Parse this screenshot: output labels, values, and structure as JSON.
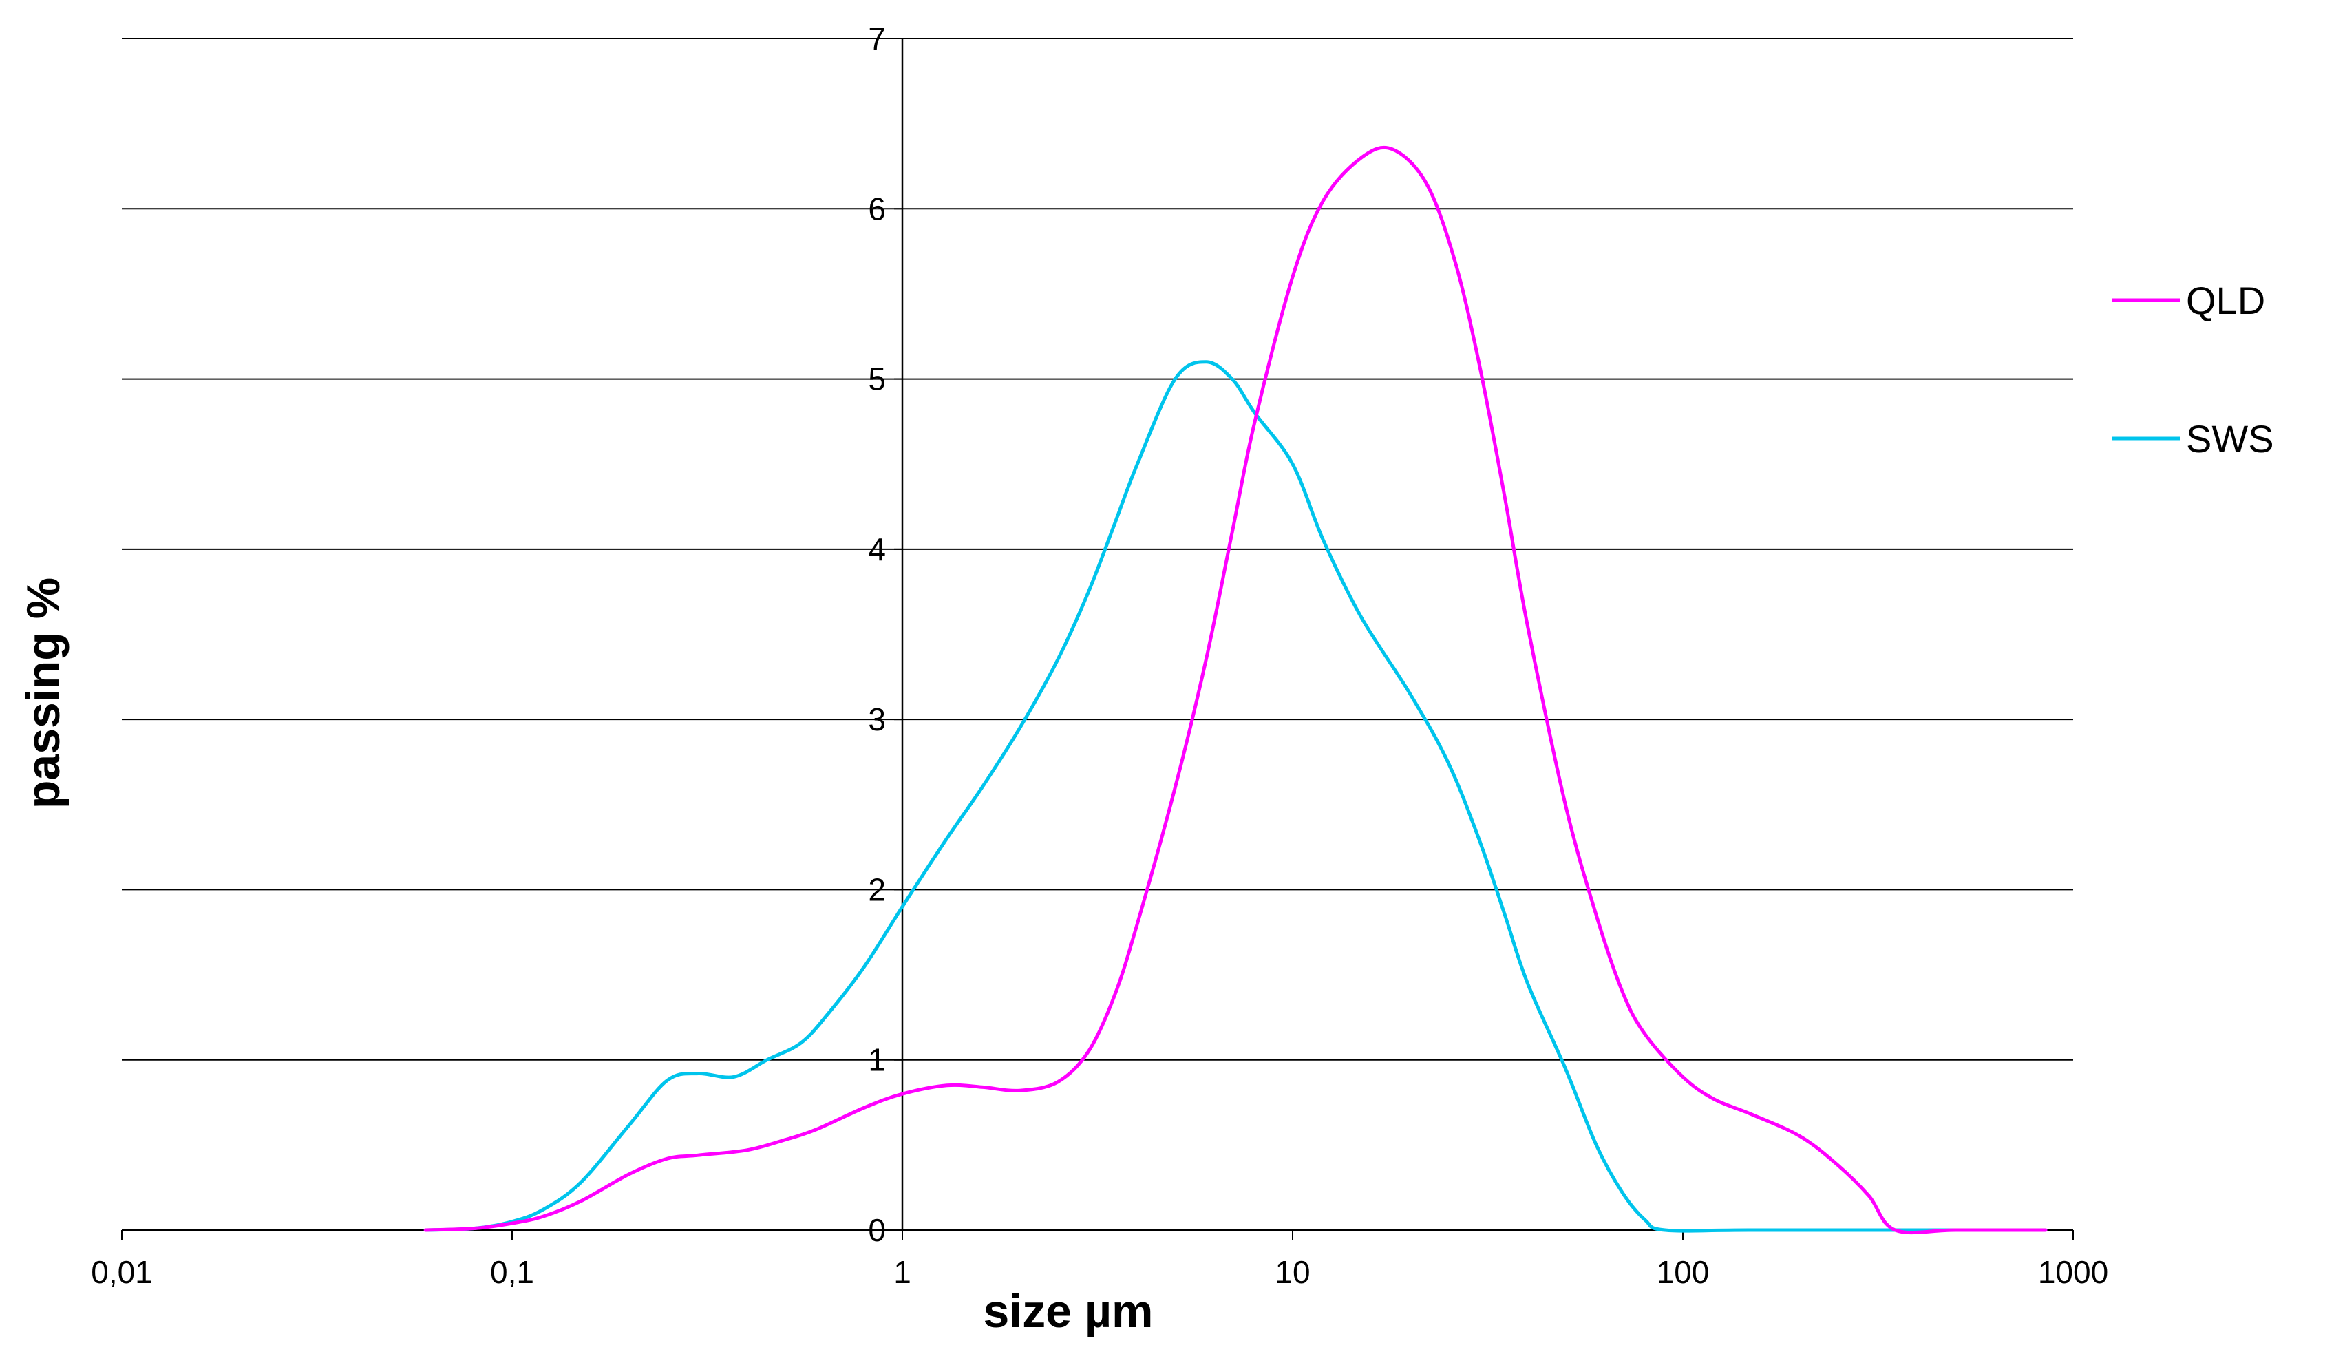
{
  "chart_data": {
    "type": "line",
    "title": "",
    "xlabel": "size µm",
    "ylabel": "passing %",
    "x_scale": "log",
    "xlim": [
      0.01,
      1000
    ],
    "ylim": [
      0,
      7
    ],
    "grid": {
      "horizontal": true,
      "vertical": false
    },
    "legend_position": "right",
    "x_ticks": [
      {
        "value": 0.01,
        "label": "0,01"
      },
      {
        "value": 0.1,
        "label": "0,1"
      },
      {
        "value": 1,
        "label": "1"
      },
      {
        "value": 10,
        "label": "10"
      },
      {
        "value": 100,
        "label": "100"
      },
      {
        "value": 1000,
        "label": "1000"
      }
    ],
    "y_ticks": [
      {
        "value": 0,
        "label": "0"
      },
      {
        "value": 1,
        "label": "1"
      },
      {
        "value": 2,
        "label": "2"
      },
      {
        "value": 3,
        "label": "3"
      },
      {
        "value": 4,
        "label": "4"
      },
      {
        "value": 5,
        "label": "5"
      },
      {
        "value": 6,
        "label": "6"
      },
      {
        "value": 7,
        "label": "7"
      }
    ],
    "series": [
      {
        "name": "QLD",
        "color": "#ff00ff",
        "points": [
          [
            0.06,
            0
          ],
          [
            0.08,
            0.01
          ],
          [
            0.1,
            0.04
          ],
          [
            0.12,
            0.08
          ],
          [
            0.15,
            0.17
          ],
          [
            0.2,
            0.33
          ],
          [
            0.25,
            0.42
          ],
          [
            0.3,
            0.44
          ],
          [
            0.4,
            0.47
          ],
          [
            0.5,
            0.53
          ],
          [
            0.6,
            0.59
          ],
          [
            0.8,
            0.72
          ],
          [
            1.0,
            0.8
          ],
          [
            1.3,
            0.85
          ],
          [
            1.6,
            0.84
          ],
          [
            2.0,
            0.82
          ],
          [
            2.5,
            0.87
          ],
          [
            3.0,
            1.05
          ],
          [
            3.5,
            1.38
          ],
          [
            4.0,
            1.8
          ],
          [
            5.0,
            2.6
          ],
          [
            6.0,
            3.35
          ],
          [
            7.0,
            4.1
          ],
          [
            8.0,
            4.75
          ],
          [
            10.0,
            5.6
          ],
          [
            12.0,
            6.05
          ],
          [
            15.0,
            6.3
          ],
          [
            18.0,
            6.35
          ],
          [
            22.0,
            6.15
          ],
          [
            26.0,
            5.7
          ],
          [
            30.0,
            5.1
          ],
          [
            35.0,
            4.3
          ],
          [
            40.0,
            3.55
          ],
          [
            50.0,
            2.5
          ],
          [
            60.0,
            1.85
          ],
          [
            70.0,
            1.4
          ],
          [
            80.0,
            1.15
          ],
          [
            100.0,
            0.9
          ],
          [
            120.0,
            0.77
          ],
          [
            150.0,
            0.68
          ],
          [
            200.0,
            0.55
          ],
          [
            250.0,
            0.38
          ],
          [
            300.0,
            0.2
          ],
          [
            350.0,
            0
          ],
          [
            500.0,
            0
          ],
          [
            850.0,
            0
          ]
        ]
      },
      {
        "name": "SWS",
        "color": "#00c4ec",
        "points": [
          [
            0.06,
            0
          ],
          [
            0.08,
            0.01
          ],
          [
            0.1,
            0.05
          ],
          [
            0.12,
            0.12
          ],
          [
            0.15,
            0.28
          ],
          [
            0.2,
            0.62
          ],
          [
            0.25,
            0.88
          ],
          [
            0.3,
            0.92
          ],
          [
            0.37,
            0.9
          ],
          [
            0.45,
            1.0
          ],
          [
            0.55,
            1.1
          ],
          [
            0.65,
            1.28
          ],
          [
            0.8,
            1.55
          ],
          [
            1.0,
            1.9
          ],
          [
            1.3,
            2.3
          ],
          [
            1.6,
            2.6
          ],
          [
            2.0,
            2.95
          ],
          [
            2.5,
            3.35
          ],
          [
            3.0,
            3.75
          ],
          [
            3.5,
            4.15
          ],
          [
            4.0,
            4.5
          ],
          [
            5.0,
            5.0
          ],
          [
            6.0,
            5.1
          ],
          [
            7.0,
            5.0
          ],
          [
            8.0,
            4.8
          ],
          [
            10.0,
            4.5
          ],
          [
            12.0,
            4.05
          ],
          [
            15.0,
            3.6
          ],
          [
            20.0,
            3.15
          ],
          [
            25.0,
            2.75
          ],
          [
            30.0,
            2.3
          ],
          [
            35.0,
            1.85
          ],
          [
            40.0,
            1.45
          ],
          [
            50.0,
            0.95
          ],
          [
            60.0,
            0.5
          ],
          [
            70.0,
            0.22
          ],
          [
            80.0,
            0.06
          ],
          [
            90.0,
            0
          ],
          [
            150.0,
            0
          ],
          [
            500.0,
            0
          ],
          [
            850.0,
            0
          ]
        ]
      }
    ]
  }
}
